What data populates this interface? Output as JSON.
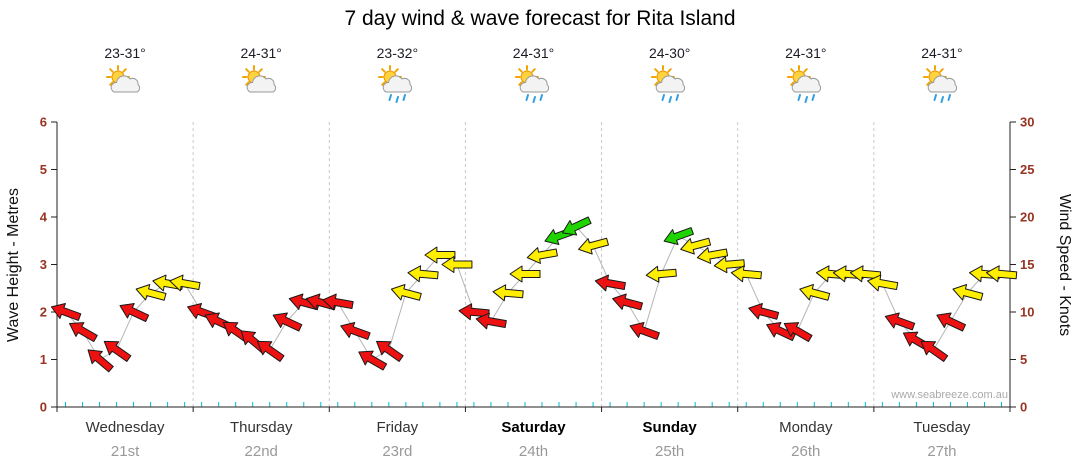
{
  "title": "7 day wind & wave forecast for Rita Island",
  "watermark": "www.seabreeze.com.au",
  "axes": {
    "left_label": "Wave Height - Metres",
    "right_label": "Wind Speed - Knots",
    "left_ticks": [
      0,
      1,
      2,
      3,
      4,
      5,
      6
    ],
    "right_ticks": [
      0,
      5,
      10,
      15,
      20,
      25,
      30
    ]
  },
  "days": [
    {
      "name": "Wednesday",
      "date": "21st",
      "temp": "23-31°",
      "icon": "partly-cloudy",
      "bold": false
    },
    {
      "name": "Thursday",
      "date": "22nd",
      "temp": "24-31°",
      "icon": "partly-cloudy",
      "bold": false
    },
    {
      "name": "Friday",
      "date": "23rd",
      "temp": "23-32°",
      "icon": "partly-cloudy-rain",
      "bold": false
    },
    {
      "name": "Saturday",
      "date": "24th",
      "temp": "24-31°",
      "icon": "partly-cloudy-rain",
      "bold": true
    },
    {
      "name": "Sunday",
      "date": "25th",
      "temp": "24-30°",
      "icon": "partly-cloudy-rain",
      "bold": true
    },
    {
      "name": "Monday",
      "date": "26th",
      "temp": "24-31°",
      "icon": "partly-cloudy-rain",
      "bold": false
    },
    {
      "name": "Tuesday",
      "date": "27th",
      "temp": "24-31°",
      "icon": "partly-cloudy-rain",
      "bold": false
    }
  ],
  "chart_data": {
    "type": "scatter",
    "description": "Wind forecast arrows, 8 samples per day; vertical position = wind speed in knots (right axis) / wave-height scale on left axis; arrow colour = wind strength; arrow rotation = wind direction",
    "samples_per_day": 8,
    "wave_axis": {
      "label": "Wave Height - Metres",
      "min": 0,
      "max": 6
    },
    "wind_axis": {
      "label": "Wind Speed - Knots",
      "min": 0,
      "max": 30
    },
    "categories": [
      "Wednesday 21st",
      "Thursday 22nd",
      "Friday 23rd",
      "Saturday 24th",
      "Sunday 25th",
      "Monday 26th",
      "Tuesday 27th"
    ],
    "knots": [
      10,
      8,
      5,
      6,
      10,
      12,
      13,
      13,
      10,
      9,
      8,
      7,
      6,
      9,
      11,
      11,
      11,
      8,
      5,
      6,
      12,
      14,
      16,
      15,
      10,
      9,
      12,
      14,
      16,
      18,
      19,
      17,
      13,
      11,
      8,
      14,
      18,
      17,
      16,
      15,
      14,
      10,
      8,
      8,
      12,
      14,
      14,
      14,
      13,
      9,
      7,
      6,
      9,
      12,
      14,
      14
    ],
    "direction_deg": [
      200,
      210,
      220,
      215,
      205,
      195,
      190,
      190,
      200,
      205,
      215,
      220,
      215,
      205,
      195,
      195,
      190,
      200,
      210,
      215,
      195,
      185,
      180,
      180,
      185,
      190,
      185,
      180,
      170,
      160,
      155,
      165,
      190,
      195,
      200,
      175,
      160,
      165,
      170,
      175,
      185,
      195,
      205,
      210,
      195,
      185,
      185,
      185,
      190,
      200,
      210,
      215,
      205,
      195,
      185,
      185
    ],
    "colors": [
      "red",
      "red",
      "red",
      "red",
      "red",
      "yellow",
      "yellow",
      "yellow",
      "red",
      "red",
      "red",
      "red",
      "red",
      "red",
      "red",
      "red",
      "red",
      "red",
      "red",
      "red",
      "yellow",
      "yellow",
      "yellow",
      "yellow",
      "red",
      "red",
      "yellow",
      "yellow",
      "yellow",
      "green",
      "green",
      "yellow",
      "red",
      "red",
      "red",
      "yellow",
      "green",
      "yellow",
      "yellow",
      "yellow",
      "yellow",
      "red",
      "red",
      "red",
      "yellow",
      "yellow",
      "yellow",
      "yellow",
      "yellow",
      "red",
      "red",
      "red",
      "red",
      "yellow",
      "yellow",
      "yellow"
    ],
    "color_hex": {
      "red": "#ee1111",
      "yellow": "#ffee00",
      "green": "#1fd400"
    }
  }
}
